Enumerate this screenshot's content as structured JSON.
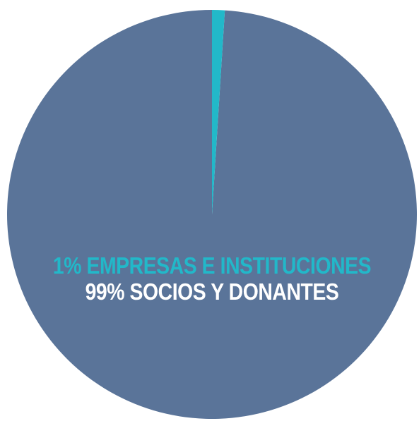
{
  "chart_data": {
    "type": "pie",
    "slices": [
      {
        "label": "1% EMPRESAS E INSTITUCIONES",
        "value": 1,
        "color": "#22b8c9",
        "label_color": "#22b8c9"
      },
      {
        "label": "99% SOCIOS Y DONANTES",
        "value": 99,
        "color": "#5a7499",
        "label_color": "#ffffff"
      }
    ],
    "start_angle_deg": 0,
    "direction": "clockwise",
    "legend": "none"
  }
}
